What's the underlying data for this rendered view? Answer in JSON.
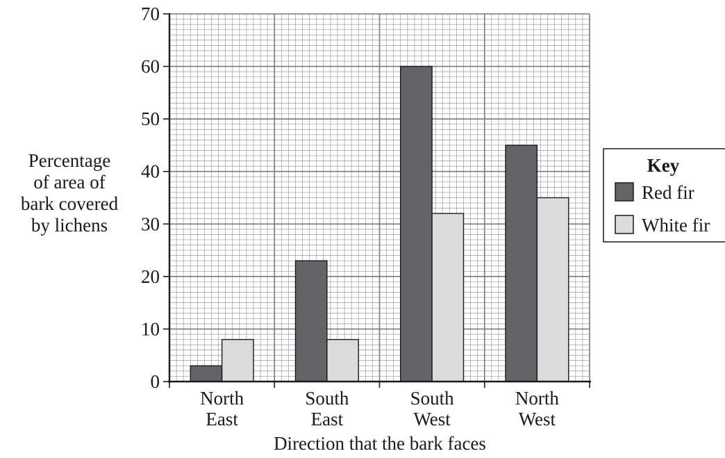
{
  "chart_data": {
    "type": "bar",
    "title": "",
    "xlabel": "Direction that the bark faces",
    "ylabel_lines": [
      "Percentage",
      "of area of",
      "bark covered",
      "by lichens"
    ],
    "categories": [
      [
        "North",
        "East"
      ],
      [
        "South",
        "East"
      ],
      [
        "South",
        "West"
      ],
      [
        "North",
        "West"
      ]
    ],
    "series": [
      {
        "name": "Red fir",
        "values": [
          3,
          23,
          60,
          45
        ],
        "color": "#636468"
      },
      {
        "name": "White fir",
        "values": [
          8,
          8,
          32,
          35
        ],
        "color": "#dcdcdc"
      }
    ],
    "ylim": [
      0,
      70
    ],
    "yticks": [
      0,
      10,
      20,
      30,
      40,
      50,
      60,
      70
    ],
    "grid": true,
    "legend": {
      "title": "Key",
      "placement": "right"
    }
  }
}
